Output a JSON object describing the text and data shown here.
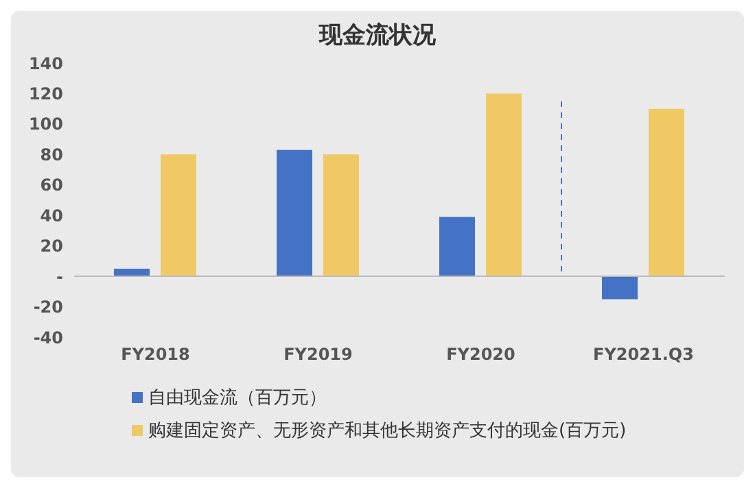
{
  "chart_data": {
    "type": "bar",
    "title": "现金流状况",
    "categories": [
      "FY2018",
      "FY2019",
      "FY2020",
      "FY2021.Q3"
    ],
    "series": [
      {
        "name": "自由现金流（百万元）",
        "color": "#4472c4",
        "values": [
          5,
          83,
          39,
          -15
        ]
      },
      {
        "name": "购建固定资产、无形资产和其他长期资产支付的现金(百万元)",
        "color": "#f0c965",
        "values": [
          80,
          80,
          120,
          110
        ]
      }
    ],
    "ylim": [
      -40,
      140
    ],
    "yticks": [
      -40,
      -20,
      {
        "value": 0,
        "label": "-"
      },
      20,
      40,
      60,
      80,
      100,
      120,
      140
    ],
    "legend": "bottom"
  }
}
